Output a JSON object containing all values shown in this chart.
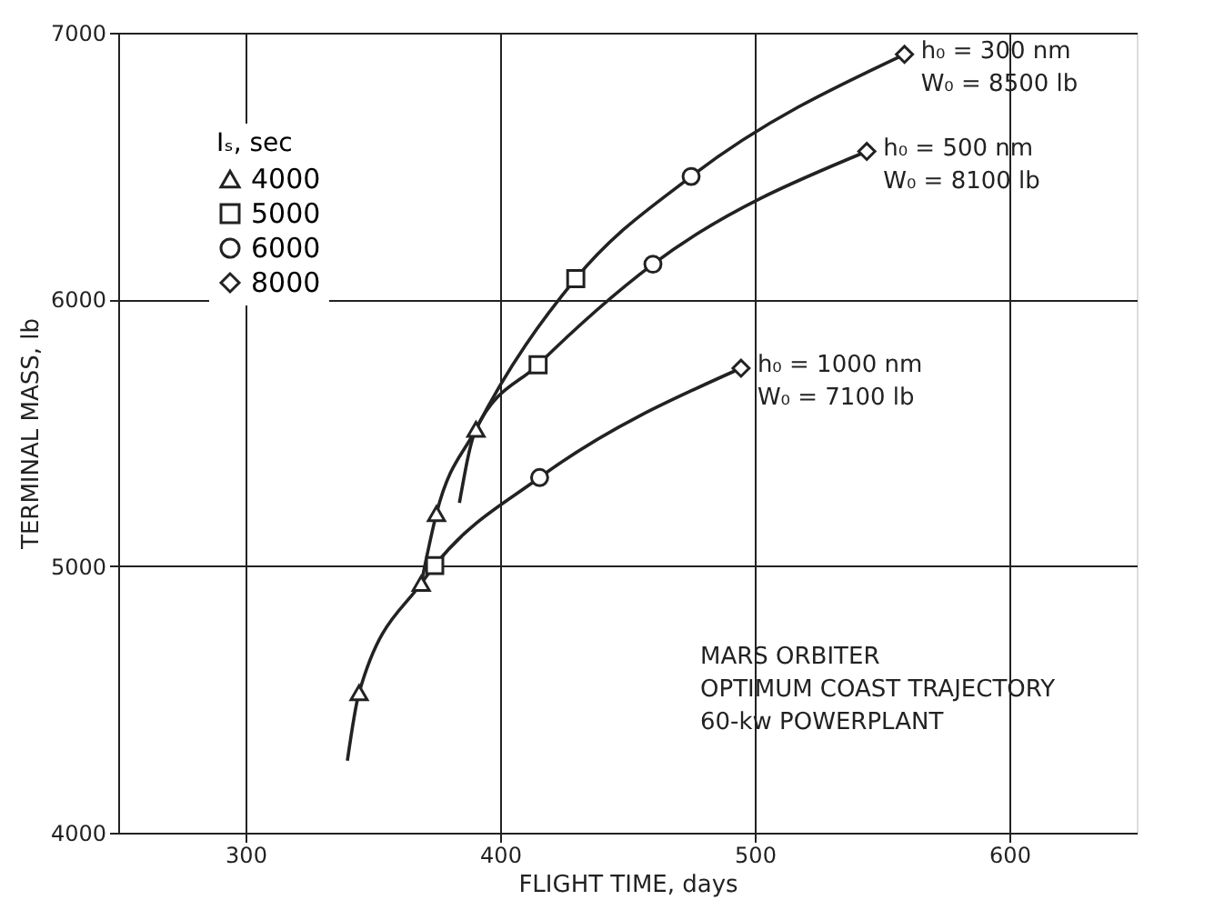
{
  "chart_data": {
    "type": "line",
    "xlabel": "FLIGHT TIME, days",
    "ylabel": "TERMINAL MASS, lb",
    "legend_title": "Iₛ, sec",
    "xlim": [
      250,
      650
    ],
    "xticks": [
      300,
      400,
      500,
      600
    ],
    "ylim": [
      4000,
      7000
    ],
    "yticks": [
      4000,
      5000,
      6000,
      7000
    ],
    "grid": true,
    "legend": "top left",
    "series": [
      {
        "name": "h₀ = 300 nm\nW₀ = 8500 lb",
        "marker": "none",
        "color": "#222222",
        "x": [
          369,
          375,
          390.5,
          429.7,
          475,
          558.8
        ],
        "values": [
          4935,
          5197,
          5513,
          6078,
          6461,
          6919
        ]
      },
      {
        "name": "h₀ = 500 nm\nW₀ = 8100 lb",
        "marker": "none",
        "color": "#222222",
        "x": [
          384,
          390.5,
          414.9,
          460,
          544
        ],
        "values": [
          5237,
          5513,
          5755,
          6132,
          6555
        ]
      },
      {
        "name": "h₀ = 1000 nm\nW₀ = 7100 lb",
        "marker": "none",
        "color": "#222222",
        "x": [
          340,
          344.6,
          369,
          374.3,
          415.5,
          494.6
        ],
        "values": [
          4270,
          4525,
          4935,
          5002,
          5332,
          5742
        ]
      },
      {
        "name": "4000",
        "type": "scatter",
        "marker": "triangle",
        "color": "#222222",
        "x": [
          344.6,
          369,
          375,
          390.5
        ],
        "values": [
          4525,
          4935,
          5197,
          5513
        ]
      },
      {
        "name": "5000",
        "type": "scatter",
        "marker": "square",
        "color": "#222222",
        "x": [
          374.3,
          414.9,
          429.7
        ],
        "values": [
          5002,
          5755,
          6078
        ]
      },
      {
        "name": "6000",
        "type": "scatter",
        "marker": "circle",
        "color": "#222222",
        "x": [
          415.5,
          460,
          475
        ],
        "values": [
          5332,
          6132,
          6461
        ]
      },
      {
        "name": "8000",
        "type": "scatter",
        "marker": "diamond",
        "color": "#222222",
        "x": [
          494.6,
          544,
          558.8
        ],
        "values": [
          5742,
          6555,
          6919
        ]
      }
    ],
    "annotations": [
      "MARS ORBITER\n  OPTIMUM COAST TRAJECTORY\n  60-kw POWERPLANT"
    ]
  }
}
